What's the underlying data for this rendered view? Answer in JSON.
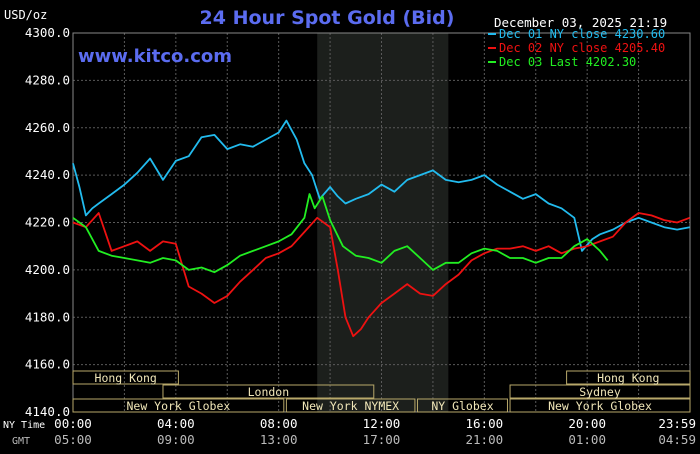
{
  "chart_data": {
    "type": "line",
    "title": "24 Hour Spot Gold (Bid)",
    "unit_label": "USD/oz",
    "watermark": "www.kitco.com",
    "datetime": "December 03, 2025 21:19",
    "ylim": [
      4140,
      4300
    ],
    "y_ticks": [
      "4300.0",
      "4280.0",
      "4260.0",
      "4240.0",
      "4220.0",
      "4200.0",
      "4180.0",
      "4160.0",
      "4140.0"
    ],
    "x_row_labels": {
      "ny": "NY Time",
      "gmt": "GMT"
    },
    "x_ticks_ny": [
      "00:00",
      "04:00",
      "08:00",
      "12:00",
      "16:00",
      "20:00",
      "23:59"
    ],
    "x_ticks_gmt": [
      "05:00",
      "09:00",
      "13:00",
      "17:00",
      "21:00",
      "01:00",
      "04:59"
    ],
    "shade_range_hours": [
      9.5,
      14.6
    ],
    "legend": [
      {
        "label": "Dec 01 NY close 4230.60",
        "color": "#22bbee"
      },
      {
        "label": "Dec 02 NY close 4205.40",
        "color": "#ee1111"
      },
      {
        "label": "Dec 03 Last 4202.30",
        "color": "#22ee22"
      }
    ],
    "sessions": [
      {
        "label": "Hong Kong",
        "row": 0,
        "start_h": -1,
        "end_h": 4.1
      },
      {
        "label": "Hong Kong",
        "row": 0,
        "start_h": 19.2,
        "end_h": 24.5
      },
      {
        "label": "London",
        "row": 1,
        "start_h": 3.5,
        "end_h": 11.7
      },
      {
        "label": "Sydney",
        "row": 1,
        "start_h": 17.0,
        "end_h": 24.5
      },
      {
        "label": "New York Globex",
        "row": 2,
        "start_h": -1,
        "end_h": 8.2
      },
      {
        "label": "New York NYMEX",
        "row": 2,
        "start_h": 8.3,
        "end_h": 13.3
      },
      {
        "label": "NY Globex",
        "row": 2,
        "start_h": 13.4,
        "end_h": 16.9
      },
      {
        "label": "New York Globex",
        "row": 2,
        "start_h": 17.0,
        "end_h": 24.5
      }
    ],
    "series": [
      {
        "name": "Dec 01",
        "color": "#22bbee",
        "x": [
          0,
          0.25,
          0.5,
          0.75,
          1,
          1.5,
          2,
          2.5,
          3,
          3.5,
          4,
          4.5,
          5,
          5.5,
          6,
          6.5,
          7,
          7.5,
          8,
          8.3,
          8.7,
          9,
          9.3,
          9.6,
          10,
          10.3,
          10.6,
          11,
          11.5,
          12,
          12.5,
          13,
          13.5,
          14,
          14.5,
          15,
          15.5,
          16,
          16.5,
          17,
          17.5,
          18,
          18.5,
          19,
          19.5,
          19.8,
          20.2,
          20.5,
          21,
          21.5,
          22,
          22.5,
          23,
          23.5,
          23.99
        ],
        "values": [
          4245,
          4235,
          4223,
          4226,
          4228,
          4232,
          4236,
          4241,
          4247,
          4238,
          4246,
          4248,
          4256,
          4257,
          4251,
          4253,
          4252,
          4255,
          4258,
          4263,
          4255,
          4245,
          4240,
          4230,
          4235,
          4231,
          4228,
          4230,
          4232,
          4236,
          4233,
          4238,
          4240,
          4242,
          4238,
          4237,
          4238,
          4240,
          4236,
          4233,
          4230,
          4232,
          4228,
          4226,
          4222,
          4208,
          4213,
          4215,
          4217,
          4220,
          4222,
          4220,
          4218,
          4217,
          4218
        ]
      },
      {
        "name": "Dec 02",
        "color": "#ee1111",
        "x": [
          0,
          0.5,
          1,
          1.5,
          2,
          2.5,
          3,
          3.5,
          4,
          4.5,
          5,
          5.5,
          6,
          6.5,
          7,
          7.5,
          8,
          8.5,
          9,
          9.5,
          10,
          10.3,
          10.6,
          10.9,
          11.2,
          11.5,
          12,
          12.5,
          13,
          13.5,
          14,
          14.5,
          15,
          15.5,
          16,
          16.5,
          17,
          17.5,
          18,
          18.5,
          19,
          19.5,
          20,
          20.5,
          21,
          21.5,
          22,
          22.5,
          23,
          23.5,
          23.99
        ],
        "values": [
          4220,
          4218,
          4224,
          4208,
          4210,
          4212,
          4208,
          4212,
          4211,
          4193,
          4190,
          4186,
          4189,
          4195,
          4200,
          4205,
          4207,
          4210,
          4216,
          4222,
          4218,
          4200,
          4180,
          4172,
          4175,
          4180,
          4186,
          4190,
          4194,
          4190,
          4189,
          4194,
          4198,
          4204,
          4207,
          4209,
          4209,
          4210,
          4208,
          4210,
          4207,
          4209,
          4210,
          4212,
          4214,
          4220,
          4224,
          4223,
          4221,
          4220,
          4222
        ]
      },
      {
        "name": "Dec 03",
        "color": "#22ee22",
        "x": [
          0,
          0.5,
          1,
          1.5,
          2,
          2.5,
          3,
          3.5,
          4,
          4.5,
          5,
          5.5,
          6,
          6.5,
          7,
          7.5,
          8,
          8.5,
          9,
          9.2,
          9.4,
          9.7,
          10,
          10.5,
          11,
          11.5,
          12,
          12.5,
          13,
          13.5,
          14,
          14.5,
          15,
          15.5,
          16,
          16.5,
          17,
          17.5,
          18,
          18.5,
          19,
          19.5,
          20,
          20.5,
          20.8
        ],
        "values": [
          4222,
          4218,
          4208,
          4206,
          4205,
          4204,
          4203,
          4205,
          4204,
          4200,
          4201,
          4199,
          4202,
          4206,
          4208,
          4210,
          4212,
          4215,
          4222,
          4232,
          4226,
          4231,
          4221,
          4210,
          4206,
          4205,
          4203,
          4208,
          4210,
          4205,
          4200,
          4203,
          4203,
          4207,
          4209,
          4208,
          4205,
          4205,
          4203,
          4205,
          4205,
          4210,
          4213,
          4208,
          4204
        ]
      }
    ]
  }
}
